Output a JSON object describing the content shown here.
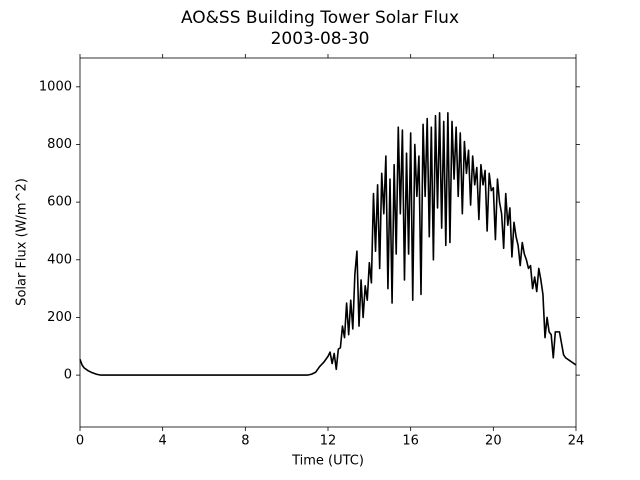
{
  "chart_data": {
    "type": "line",
    "title": "AO&SS Building Tower Solar Flux",
    "subtitle": "2003-08-30",
    "x_label": "Time (UTC)",
    "y_label": "Solar Flux (W/m^2)",
    "xlim": [
      0,
      24
    ],
    "xticks": [
      0,
      4,
      8,
      12,
      16,
      20,
      24
    ],
    "ylim": [
      -180,
      1100
    ],
    "yticks": [
      0,
      200,
      400,
      600,
      800,
      1000
    ],
    "color": "#000000",
    "grid": false,
    "x": [
      0,
      0.1,
      0.2,
      0.4,
      0.6,
      0.8,
      1,
      2,
      3,
      4,
      5,
      6,
      7,
      8,
      9,
      10,
      11,
      11.2,
      11.4,
      11.6,
      11.8,
      11.9,
      12.0,
      12.1,
      12.2,
      12.3,
      12.4,
      12.5,
      12.6,
      12.7,
      12.8,
      12.9,
      13.0,
      13.1,
      13.2,
      13.3,
      13.4,
      13.5,
      13.6,
      13.7,
      13.8,
      13.9,
      14.0,
      14.1,
      14.2,
      14.3,
      14.4,
      14.5,
      14.6,
      14.7,
      14.8,
      14.9,
      15.0,
      15.1,
      15.2,
      15.3,
      15.4,
      15.5,
      15.6,
      15.7,
      15.8,
      15.9,
      16.0,
      16.1,
      16.2,
      16.3,
      16.4,
      16.5,
      16.6,
      16.7,
      16.8,
      16.9,
      17.0,
      17.1,
      17.2,
      17.3,
      17.4,
      17.5,
      17.6,
      17.7,
      17.8,
      17.9,
      18.0,
      18.1,
      18.2,
      18.3,
      18.4,
      18.5,
      18.6,
      18.7,
      18.8,
      18.9,
      19.0,
      19.1,
      19.2,
      19.3,
      19.4,
      19.5,
      19.6,
      19.7,
      19.8,
      19.9,
      20.0,
      20.1,
      20.2,
      20.3,
      20.4,
      20.5,
      20.6,
      20.7,
      20.8,
      20.9,
      21.0,
      21.1,
      21.2,
      21.3,
      21.4,
      21.5,
      21.6,
      21.7,
      21.8,
      21.9,
      22.0,
      22.1,
      22.2,
      22.3,
      22.4,
      22.5,
      22.6,
      22.7,
      22.8,
      22.9,
      23.0,
      23.1,
      23.2,
      23.3,
      23.4,
      23.5,
      23.6,
      23.7,
      23.8,
      23.9,
      24.0
    ],
    "values": [
      55,
      35,
      25,
      15,
      8,
      3,
      0,
      0,
      0,
      0,
      0,
      0,
      0,
      0,
      0,
      0,
      0,
      3,
      10,
      30,
      45,
      55,
      65,
      80,
      40,
      75,
      20,
      90,
      95,
      170,
      130,
      250,
      140,
      260,
      160,
      350,
      430,
      170,
      330,
      200,
      310,
      260,
      390,
      320,
      630,
      430,
      660,
      370,
      700,
      560,
      760,
      300,
      680,
      250,
      730,
      420,
      860,
      560,
      850,
      330,
      770,
      420,
      840,
      260,
      800,
      620,
      760,
      280,
      870,
      620,
      890,
      480,
      860,
      400,
      900,
      580,
      910,
      510,
      880,
      450,
      910,
      460,
      880,
      680,
      860,
      620,
      840,
      560,
      810,
      700,
      780,
      590,
      760,
      660,
      720,
      540,
      730,
      660,
      710,
      500,
      700,
      640,
      650,
      470,
      680,
      600,
      560,
      440,
      630,
      520,
      580,
      410,
      530,
      480,
      450,
      380,
      460,
      420,
      400,
      370,
      380,
      300,
      340,
      290,
      370,
      330,
      280,
      130,
      200,
      150,
      140,
      60,
      150,
      150,
      150,
      110,
      70,
      60,
      55,
      50,
      45,
      40,
      35
    ]
  }
}
